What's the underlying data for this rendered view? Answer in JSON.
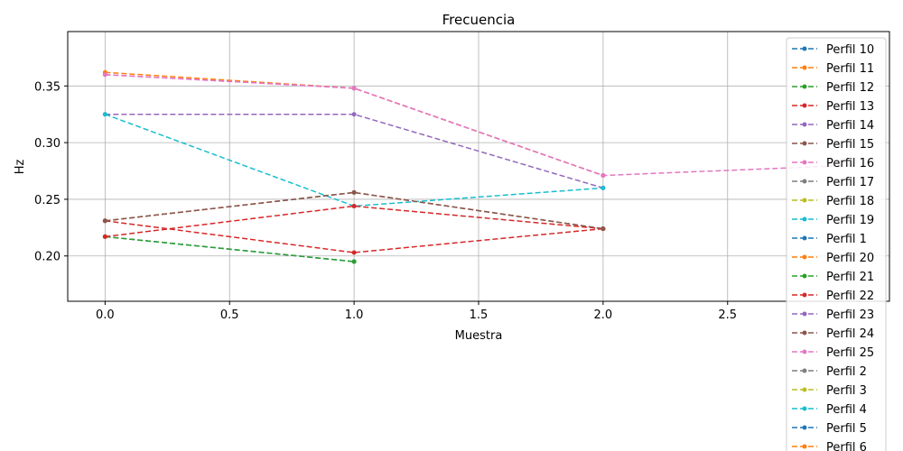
{
  "chart_data": {
    "type": "line",
    "title": "Frecuencia",
    "xlabel": "Muestra",
    "ylabel": "Hz",
    "xlim": [
      -0.15,
      3.15
    ],
    "ylim": [
      0.16,
      0.398
    ],
    "xticks": [
      0.0,
      0.5,
      1.0,
      1.5,
      2.0,
      2.5
    ],
    "xtick_labels": [
      "0.0",
      "0.5",
      "1.0",
      "1.5",
      "2.0",
      "2.5"
    ],
    "yticks": [
      0.2,
      0.25,
      0.3,
      0.35
    ],
    "ytick_labels": [
      "0.20",
      "0.25",
      "0.30",
      "0.35"
    ],
    "grid": true,
    "legend_position": "right",
    "series": [
      {
        "name": "Perfil 10",
        "color": "#1f77b4",
        "x": [
          0,
          1
        ],
        "y": [
          0.217,
          0.195
        ]
      },
      {
        "name": "Perfil 11",
        "color": "#ff7f0e",
        "x": [
          0,
          1,
          2
        ],
        "y": [
          0.362,
          0.348,
          0.271
        ]
      },
      {
        "name": "Perfil 12",
        "color": "#2ca02c",
        "x": [
          0,
          1
        ],
        "y": [
          0.217,
          0.195
        ]
      },
      {
        "name": "Perfil 13",
        "color": "#d62728",
        "x": [
          0,
          1,
          2
        ],
        "y": [
          0.231,
          0.203,
          0.224
        ]
      },
      {
        "name": "Perfil 14",
        "color": "#9467bd",
        "x": [
          0,
          1,
          2
        ],
        "y": [
          0.325,
          0.325,
          0.26
        ]
      },
      {
        "name": "Perfil 15",
        "color": "#8c564b",
        "x": [
          0,
          1,
          2
        ],
        "y": [
          0.231,
          0.256,
          0.224
        ]
      },
      {
        "name": "Perfil 16",
        "color": "#e377c2",
        "x": [
          0,
          1,
          2,
          3
        ],
        "y": [
          0.36,
          0.348,
          0.271,
          0.28
        ]
      },
      {
        "name": "Perfil 17",
        "color": "#7f7f7f",
        "x": [],
        "y": []
      },
      {
        "name": "Perfil 18",
        "color": "#bcbd22",
        "x": [],
        "y": []
      },
      {
        "name": "Perfil 19",
        "color": "#17becf",
        "x": [
          0,
          1,
          2
        ],
        "y": [
          0.325,
          0.244,
          0.26
        ]
      },
      {
        "name": "Perfil 1",
        "color": "#1f77b4",
        "x": [],
        "y": []
      },
      {
        "name": "Perfil 20",
        "color": "#ff7f0e",
        "x": [],
        "y": []
      },
      {
        "name": "Perfil 21",
        "color": "#2ca02c",
        "x": [],
        "y": []
      },
      {
        "name": "Perfil 22",
        "color": "#d62728",
        "x": [
          0,
          1,
          2
        ],
        "y": [
          0.217,
          0.244,
          0.224
        ]
      },
      {
        "name": "Perfil 23",
        "color": "#9467bd",
        "x": [],
        "y": []
      },
      {
        "name": "Perfil 24",
        "color": "#8c564b",
        "x": [
          0,
          1,
          2
        ],
        "y": [
          0.231,
          0.256,
          0.224
        ]
      },
      {
        "name": "Perfil 25",
        "color": "#e377c2",
        "x": [
          0,
          1,
          2
        ],
        "y": [
          0.36,
          0.348,
          0.271
        ]
      },
      {
        "name": "Perfil 2",
        "color": "#7f7f7f",
        "x": [],
        "y": []
      },
      {
        "name": "Perfil 3",
        "color": "#bcbd22",
        "x": [],
        "y": []
      },
      {
        "name": "Perfil 4",
        "color": "#17becf",
        "x": [],
        "y": []
      },
      {
        "name": "Perfil 5",
        "color": "#1f77b4",
        "x": [],
        "y": []
      },
      {
        "name": "Perfil 6",
        "color": "#ff7f0e",
        "x": [],
        "y": []
      }
    ]
  }
}
